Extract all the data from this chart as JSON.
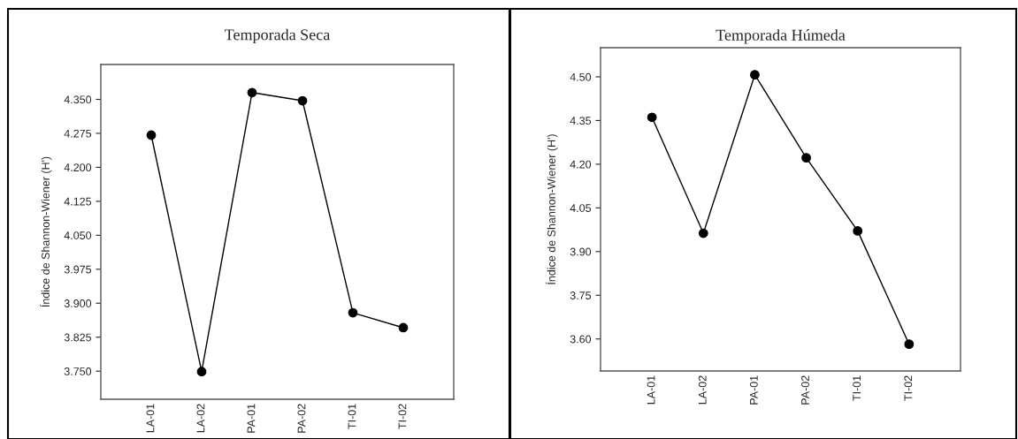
{
  "chart_data": [
    {
      "type": "line",
      "title": "Temporada Seca",
      "ylabel": "Índice de Shannon-Wiener (H')",
      "categories": [
        "LA-01",
        "LA-02",
        "PA-01",
        "PA-02",
        "TI-01",
        "TI-02"
      ],
      "series": [
        {
          "color": "#000000",
          "values": [
            4.271,
            3.749,
            4.365,
            4.347,
            3.879,
            3.846
          ]
        }
      ],
      "ylim": [
        3.688,
        4.427
      ],
      "yticks": [
        {
          "value": 3.75,
          "label": "3.750"
        },
        {
          "value": 3.825,
          "label": "3.825"
        },
        {
          "value": 3.9,
          "label": "3.900"
        },
        {
          "value": 3.975,
          "label": "3.975"
        },
        {
          "value": 4.05,
          "label": "4.050"
        },
        {
          "value": 4.125,
          "label": "4.125"
        },
        {
          "value": 4.2,
          "label": "4.200"
        },
        {
          "value": 4.275,
          "label": "4.275"
        },
        {
          "value": 4.35,
          "label": "4.350"
        }
      ],
      "marker": "circle",
      "line_style": "solid",
      "grid": false,
      "legend": false
    },
    {
      "type": "line",
      "title": "Temporada Húmeda",
      "ylabel": "Índice de Shannon-Wiener (H')",
      "categories": [
        "LA-01",
        "LA-02",
        "PA-01",
        "PA-02",
        "TI-01",
        "TI-02"
      ],
      "series": [
        {
          "color": "#000000",
          "values": [
            4.361,
            3.963,
            4.507,
            4.222,
            3.971,
            3.582
          ]
        }
      ],
      "ylim": [
        3.49,
        4.6
      ],
      "yticks": [
        {
          "value": 3.6,
          "label": "3.60"
        },
        {
          "value": 3.75,
          "label": "3.75"
        },
        {
          "value": 3.9,
          "label": "3.90"
        },
        {
          "value": 4.05,
          "label": "4.05"
        },
        {
          "value": 4.2,
          "label": "4.20"
        },
        {
          "value": 4.35,
          "label": "4.35"
        },
        {
          "value": 4.5,
          "label": "4.50"
        }
      ],
      "marker": "circle",
      "line_style": "solid",
      "grid": false,
      "legend": false
    }
  ]
}
